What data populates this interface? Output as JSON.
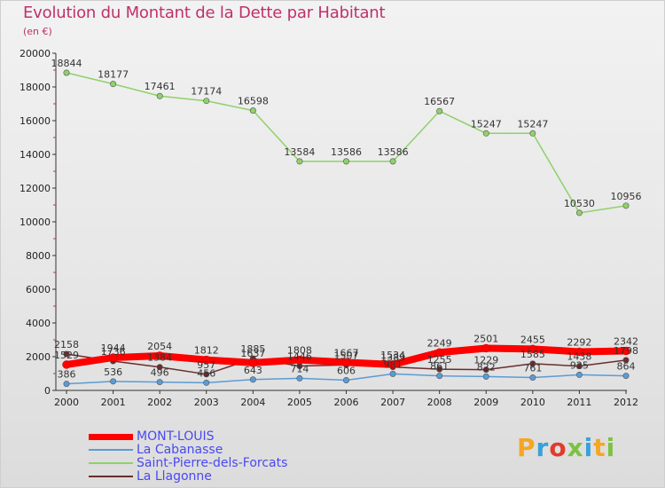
{
  "header": {
    "title": "Evolution du Montant de la Dette par Habitant",
    "subtitle": "(en €)"
  },
  "brand": {
    "logo_text": "Proxiti",
    "letter_colors": [
      "#f5a623",
      "#3aa0d8",
      "#e03c2c",
      "#7cc242",
      "#3aa0d8",
      "#f5a623",
      "#7cc242"
    ]
  },
  "chart_data": {
    "type": "line",
    "title": "Evolution du Montant de la Dette par Habitant",
    "subtitle": "(en €)",
    "x": [
      "2000",
      "2001",
      "2002",
      "2003",
      "2004",
      "2005",
      "2006",
      "2007",
      "2008",
      "2009",
      "2010",
      "2011",
      "2012"
    ],
    "y_ticks": [
      "0",
      "2000",
      "4000",
      "6000",
      "8000",
      "10000",
      "12000",
      "14000",
      "16000",
      "18000",
      "20000"
    ],
    "ylim": [
      0,
      20000
    ],
    "grid": false,
    "legend_position": "bottom-left",
    "series": [
      {
        "name": "Saint-Pierre-dels-Forcats",
        "color": "#8fd16a",
        "values": [
          18844,
          18177,
          17461,
          17174,
          16598,
          13584,
          13586,
          13586,
          16567,
          15247,
          15247,
          10530,
          10956
        ]
      },
      {
        "name": "La Llagonne",
        "color": "#6b2d2d",
        "values": [
          2158,
          1736,
          1384,
          957,
          1885,
          1446,
          1507,
          1389,
          1255,
          1229,
          1585,
          1438,
          1798
        ]
      },
      {
        "name": "La Cabanasse",
        "color": "#5b9bd5",
        "values": [
          386,
          536,
          496,
          456,
          643,
          714,
          606,
          981,
          861,
          822,
          761,
          925,
          864
        ]
      },
      {
        "name": "MONT-LOUIS",
        "color": "#ff0000",
        "values": [
          1529,
          1944,
          2054,
          1812,
          1637,
          1808,
          1667,
          1534,
          2249,
          2501,
          2455,
          2292,
          2342
        ]
      }
    ],
    "legend_order": [
      "MONT-LOUIS",
      "La Cabanasse",
      "Saint-Pierre-dels-Forcats",
      "La Llagonne"
    ]
  },
  "legend": [
    {
      "label": "MONT-LOUIS",
      "color": "#ff0000"
    },
    {
      "label": "La Cabanasse",
      "color": "#5b9bd5"
    },
    {
      "label": "Saint-Pierre-dels-Forcats",
      "color": "#8fd16a"
    },
    {
      "label": "La Llagonne",
      "color": "#6b2d2d"
    }
  ]
}
